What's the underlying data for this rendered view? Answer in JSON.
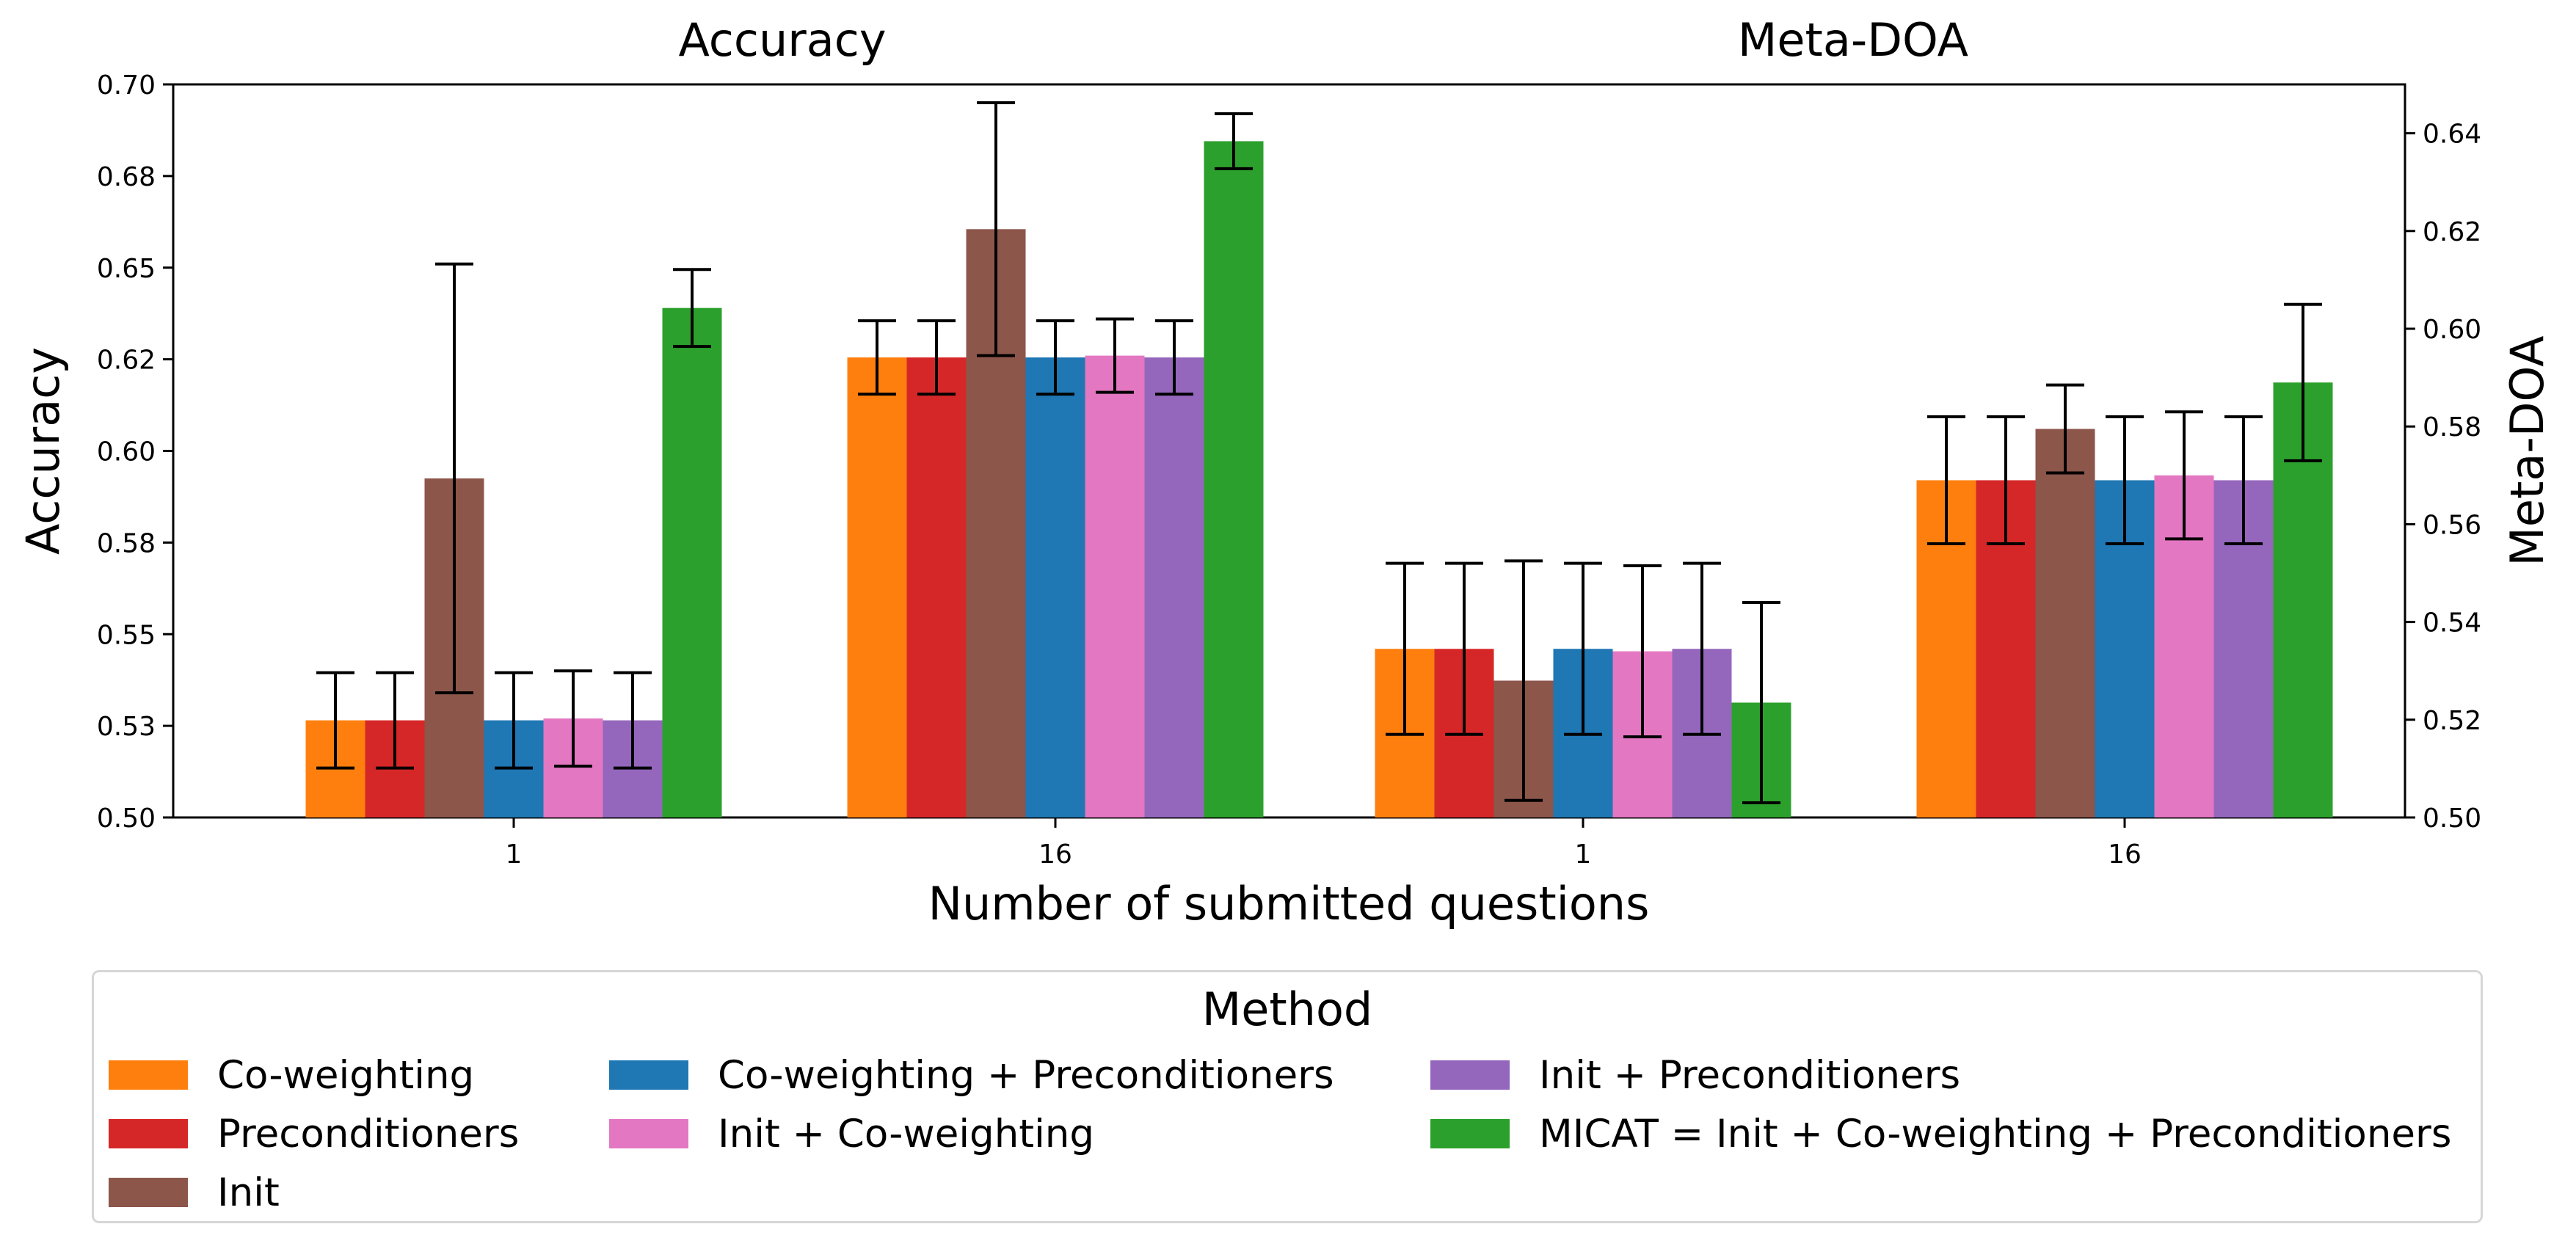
{
  "chart_data": {
    "type": "bar",
    "xlabel": "Number of submitted questions",
    "legend_title": "Method",
    "legend_placement": "bottom",
    "error_bars": true,
    "grid": false,
    "series": [
      {
        "name": "Co-weighting",
        "color": "#ff7f0e"
      },
      {
        "name": "Preconditioners",
        "color": "#d62728"
      },
      {
        "name": "Init",
        "color": "#8c564b"
      },
      {
        "name": "Co-weighting + Preconditioners",
        "color": "#1f77b4"
      },
      {
        "name": "Init + Co-weighting",
        "color": "#e377c2"
      },
      {
        "name": "Init + Preconditioners",
        "color": "#9467bd"
      },
      {
        "name": "MICAT = Init + Co-weighting + Preconditioners",
        "color": "#2ca02c"
      }
    ],
    "panels": [
      {
        "title": "Accuracy",
        "axis": "left",
        "ylabel": "Accuracy",
        "ylim": [
          0.5,
          0.7
        ],
        "yticks": [
          "0.50",
          "0.53",
          "0.55",
          "0.58",
          "0.60",
          "0.62",
          "0.65",
          "0.68",
          "0.70"
        ],
        "categories": [
          "1",
          "16"
        ],
        "values": [
          [
            0.5265,
            0.5265,
            0.5925,
            0.5265,
            0.527,
            0.5265,
            0.639
          ],
          [
            0.6255,
            0.6255,
            0.6605,
            0.6255,
            0.626,
            0.6255,
            0.6845
          ]
        ],
        "errors": [
          [
            0.013,
            0.013,
            0.0585,
            0.013,
            0.013,
            0.013,
            0.0105
          ],
          [
            0.01,
            0.01,
            0.0345,
            0.01,
            0.01,
            0.01,
            0.0075
          ]
        ]
      },
      {
        "title": "Meta-DOA",
        "axis": "right",
        "ylabel": "Meta-DOA",
        "ylim": [
          0.5,
          0.65
        ],
        "yticks": [
          "0.50",
          "0.52",
          "0.54",
          "0.56",
          "0.58",
          "0.60",
          "0.62",
          "0.64"
        ],
        "categories": [
          "1",
          "16"
        ],
        "values": [
          [
            0.5345,
            0.5345,
            0.528,
            0.5345,
            0.534,
            0.5345,
            0.5235
          ],
          [
            0.569,
            0.569,
            0.5795,
            0.569,
            0.57,
            0.569,
            0.589
          ]
        ],
        "errors": [
          [
            0.0175,
            0.0175,
            0.0245,
            0.0175,
            0.0175,
            0.0175,
            0.0205
          ],
          [
            0.013,
            0.013,
            0.009,
            0.013,
            0.013,
            0.013,
            0.016
          ]
        ]
      }
    ]
  }
}
